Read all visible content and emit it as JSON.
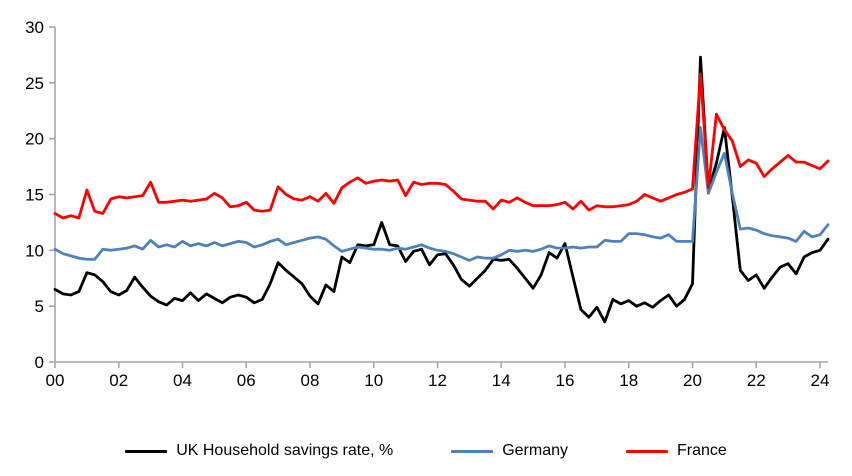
{
  "chart_data": {
    "type": "line",
    "x_start_year": 2000,
    "x_step_years": 0.25,
    "x_axis_tick_years": [
      0,
      2,
      4,
      6,
      8,
      10,
      12,
      14,
      16,
      18,
      20,
      22,
      24
    ],
    "x_tick_labels": [
      "00",
      "02",
      "04",
      "06",
      "08",
      "10",
      "12",
      "14",
      "16",
      "18",
      "20",
      "22",
      "24"
    ],
    "y_ticks": [
      0,
      5,
      10,
      15,
      20,
      25,
      30
    ],
    "ylim": [
      0,
      30
    ],
    "grid": false,
    "legend_position": "bottom",
    "axis_color": "#a6a6a6",
    "series": [
      {
        "name": "UK Household savings rate, %",
        "color": "#000000",
        "values": [
          6.5,
          6.1,
          6.0,
          6.3,
          8.0,
          7.8,
          7.2,
          6.3,
          6.0,
          6.4,
          7.6,
          6.7,
          5.9,
          5.4,
          5.1,
          5.7,
          5.5,
          6.2,
          5.5,
          6.1,
          5.7,
          5.3,
          5.8,
          6.0,
          5.8,
          5.3,
          5.6,
          7.0,
          8.9,
          8.2,
          7.6,
          7.0,
          5.9,
          5.2,
          6.9,
          6.3,
          9.4,
          8.9,
          10.5,
          10.4,
          10.5,
          12.5,
          10.5,
          10.4,
          9.0,
          9.9,
          10.1,
          8.7,
          9.6,
          9.7,
          8.7,
          7.4,
          6.8,
          7.5,
          8.2,
          9.2,
          9.1,
          9.2,
          8.4,
          7.5,
          6.6,
          7.8,
          9.8,
          9.3,
          10.6,
          7.6,
          4.7,
          4.0,
          4.9,
          3.6,
          5.6,
          5.2,
          5.5,
          5.0,
          5.3,
          4.9,
          5.5,
          6.0,
          5.0,
          5.6,
          7.0,
          27.3,
          15.4,
          17.8,
          21.0,
          14.8,
          8.2,
          7.3,
          7.8,
          6.6,
          7.6,
          8.5,
          8.8,
          7.9,
          9.4,
          9.8,
          10.0,
          11.0
        ]
      },
      {
        "name": "Germany",
        "color": "#4f81bd",
        "values": [
          10.1,
          9.7,
          9.5,
          9.3,
          9.2,
          9.2,
          10.1,
          10.0,
          10.1,
          10.2,
          10.4,
          10.1,
          10.9,
          10.3,
          10.5,
          10.3,
          10.8,
          10.4,
          10.6,
          10.4,
          10.7,
          10.4,
          10.6,
          10.8,
          10.7,
          10.3,
          10.5,
          10.8,
          11.0,
          10.5,
          10.7,
          10.9,
          11.1,
          11.2,
          11.0,
          10.4,
          9.9,
          10.1,
          10.3,
          10.2,
          10.1,
          10.1,
          10.0,
          10.2,
          10.1,
          10.3,
          10.5,
          10.2,
          10.0,
          9.9,
          9.7,
          9.4,
          9.1,
          9.4,
          9.3,
          9.3,
          9.6,
          10.0,
          9.9,
          10.0,
          9.9,
          10.1,
          10.4,
          10.2,
          10.2,
          10.3,
          10.2,
          10.3,
          10.3,
          10.9,
          10.8,
          10.8,
          11.5,
          11.5,
          11.4,
          11.2,
          11.1,
          11.4,
          10.8,
          10.8,
          10.8,
          21.0,
          15.1,
          17.0,
          18.7,
          15.1,
          11.9,
          12.0,
          11.8,
          11.5,
          11.3,
          11.2,
          11.1,
          10.8,
          11.7,
          11.2,
          11.4,
          12.3
        ]
      },
      {
        "name": "France",
        "color": "#ff0000",
        "values": [
          13.3,
          12.9,
          13.1,
          12.9,
          15.4,
          13.5,
          13.3,
          14.6,
          14.8,
          14.7,
          14.8,
          14.9,
          16.1,
          14.3,
          14.3,
          14.4,
          14.5,
          14.4,
          14.5,
          14.6,
          15.1,
          14.7,
          13.9,
          14.0,
          14.3,
          13.6,
          13.5,
          13.6,
          15.7,
          15.0,
          14.6,
          14.5,
          14.8,
          14.4,
          15.1,
          14.2,
          15.6,
          16.1,
          16.5,
          16.0,
          16.2,
          16.3,
          16.2,
          16.3,
          14.9,
          16.1,
          15.9,
          16.0,
          16.0,
          15.9,
          15.3,
          14.6,
          14.5,
          14.4,
          14.4,
          13.7,
          14.5,
          14.3,
          14.7,
          14.3,
          14.0,
          14.0,
          14.0,
          14.1,
          14.3,
          13.7,
          14.4,
          13.6,
          14.0,
          13.9,
          13.9,
          14.0,
          14.1,
          14.4,
          15.0,
          14.7,
          14.4,
          14.7,
          15.0,
          15.2,
          15.5,
          25.8,
          15.6,
          22.2,
          20.8,
          19.8,
          17.5,
          18.1,
          17.8,
          16.6,
          17.3,
          17.9,
          18.5,
          17.9,
          17.9,
          17.6,
          17.3,
          18.0
        ]
      }
    ]
  },
  "legend": {
    "items": [
      {
        "label": "UK Household savings rate, %",
        "color": "#000000"
      },
      {
        "label": "Germany",
        "color": "#4f81bd"
      },
      {
        "label": "France",
        "color": "#ff0000"
      }
    ]
  }
}
